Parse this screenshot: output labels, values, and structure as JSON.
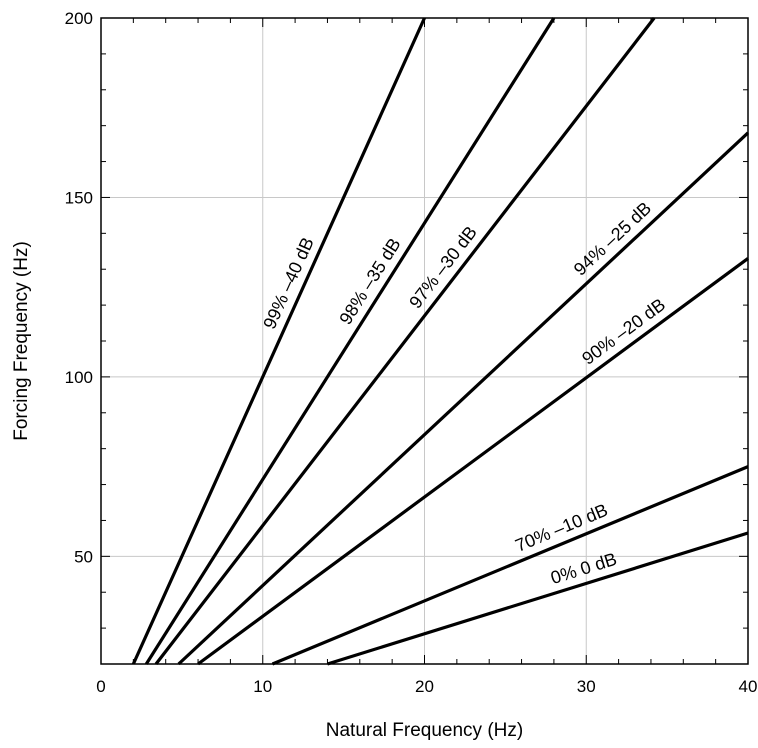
{
  "chart_data": {
    "type": "line",
    "xlabel": "Natural Frequency (Hz)",
    "ylabel": "Forcing Frequency (Hz)",
    "xlim": [
      0,
      40
    ],
    "ylim": [
      20,
      200
    ],
    "x_ticks": [
      0,
      10,
      20,
      30,
      40
    ],
    "y_ticks": [
      50,
      100,
      150,
      200
    ],
    "grid": true,
    "series": [
      {
        "name": "99% –40 dB",
        "x": [
          2.0,
          20.0
        ],
        "y": [
          20,
          200
        ]
      },
      {
        "name": "98% –35 dB",
        "x": [
          2.8,
          28.0
        ],
        "y": [
          20,
          200
        ]
      },
      {
        "name": "97% –30 dB",
        "x": [
          3.4,
          34.2
        ],
        "y": [
          20,
          200
        ]
      },
      {
        "name": "94% –25 dB",
        "x": [
          4.8,
          40.0
        ],
        "y": [
          20,
          168
        ]
      },
      {
        "name": "90% –20 dB",
        "x": [
          6.0,
          40.0
        ],
        "y": [
          20,
          133
        ]
      },
      {
        "name": "70% –10 dB",
        "x": [
          10.6,
          40.0
        ],
        "y": [
          20,
          75
        ]
      },
      {
        "name": "0% 0 dB",
        "x": [
          14.0,
          40.0
        ],
        "y": [
          20,
          56.5
        ]
      }
    ]
  }
}
